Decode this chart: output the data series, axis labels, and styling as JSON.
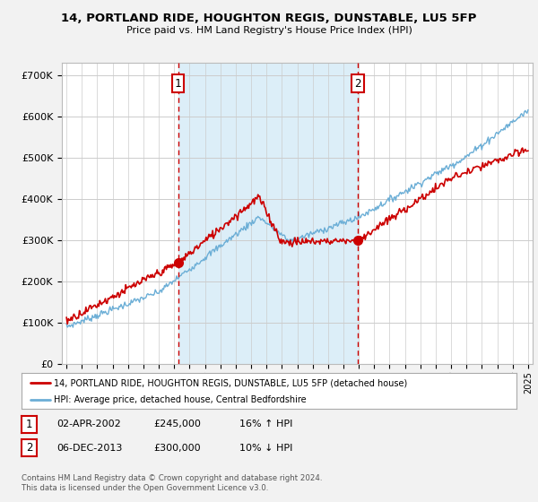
{
  "title": "14, PORTLAND RIDE, HOUGHTON REGIS, DUNSTABLE, LU5 5FP",
  "subtitle": "Price paid vs. HM Land Registry's House Price Index (HPI)",
  "background_color": "#f2f2f2",
  "plot_bg_color": "#ffffff",
  "ylabel_ticks": [
    "£0",
    "£100K",
    "£200K",
    "£300K",
    "£400K",
    "£500K",
    "£600K",
    "£700K"
  ],
  "ytick_values": [
    0,
    100000,
    200000,
    300000,
    400000,
    500000,
    600000,
    700000
  ],
  "ylim": [
    0,
    730000
  ],
  "xlim_start": 1994.7,
  "xlim_end": 2025.3,
  "xtick_years": [
    1995,
    1996,
    1997,
    1998,
    1999,
    2000,
    2001,
    2002,
    2003,
    2004,
    2005,
    2006,
    2007,
    2008,
    2009,
    2010,
    2011,
    2012,
    2013,
    2014,
    2015,
    2016,
    2017,
    2018,
    2019,
    2020,
    2021,
    2022,
    2023,
    2024,
    2025
  ],
  "hpi_line_color": "#6baed6",
  "property_line_color": "#cc0000",
  "shade_color": "#dceef8",
  "sale1_x": 2002.25,
  "sale1_y": 245000,
  "sale1_label": "1",
  "sale2_x": 2013.92,
  "sale2_y": 300000,
  "sale2_label": "2",
  "vline1_x": 2002.25,
  "vline2_x": 2013.92,
  "vline_color": "#cc0000",
  "legend_line1": "14, PORTLAND RIDE, HOUGHTON REGIS, DUNSTABLE, LU5 5FP (detached house)",
  "legend_line2": "HPI: Average price, detached house, Central Bedfordshire",
  "table_row1": [
    "1",
    "02-APR-2002",
    "£245,000",
    "16% ↑ HPI"
  ],
  "table_row2": [
    "2",
    "06-DEC-2013",
    "£300,000",
    "10% ↓ HPI"
  ],
  "footnote": "Contains HM Land Registry data © Crown copyright and database right 2024.\nThis data is licensed under the Open Government Licence v3.0."
}
